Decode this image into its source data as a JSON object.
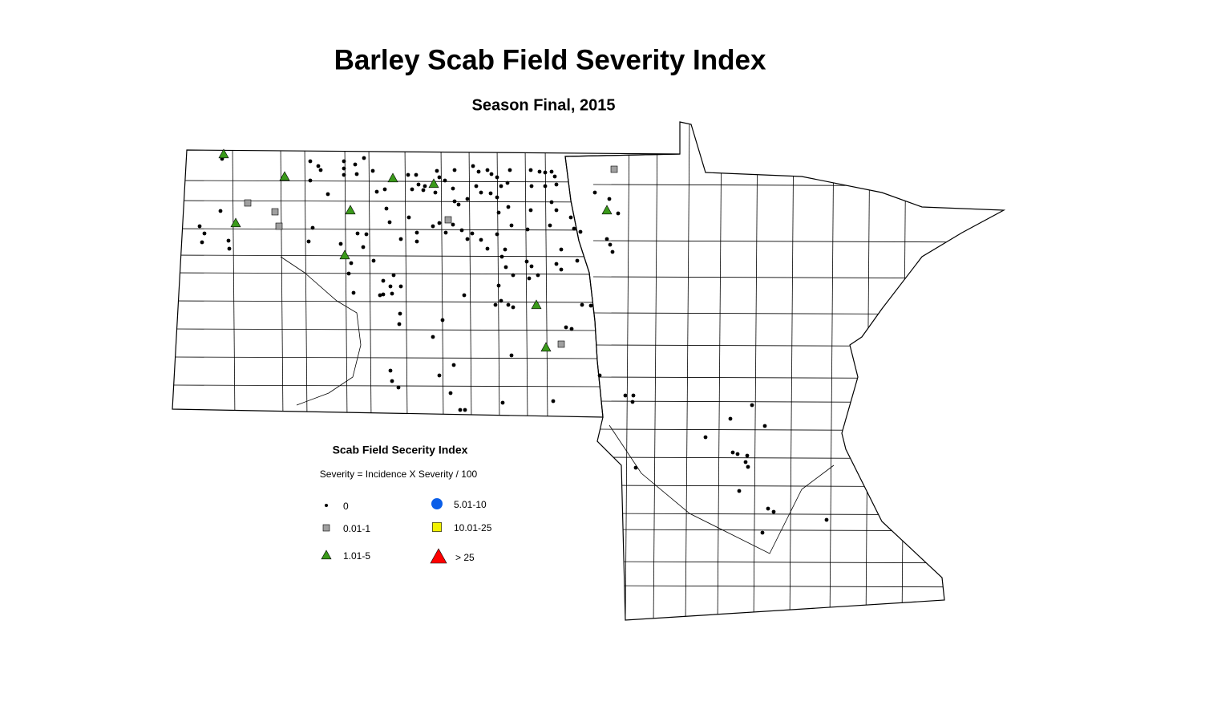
{
  "header": {
    "title": "Barley Scab Field Severity Index",
    "subtitle": "Season Final, 2015"
  },
  "legend": {
    "title": "Scab Field Secerity Index",
    "note": "Severity = Incidence X Severity / 100",
    "items": [
      {
        "label": "0",
        "shape": "dot",
        "color": "#000000"
      },
      {
        "label": "0.01-1",
        "shape": "square",
        "color": "#a0a0a0"
      },
      {
        "label": "1.01-5",
        "shape": "triangle",
        "color": "#3a9a1a"
      },
      {
        "label": "5.01-10",
        "shape": "circle",
        "color": "#0a5ee8"
      },
      {
        "label": "10.01-25",
        "shape": "square",
        "color": "#f2f200"
      },
      {
        "label": "> 25",
        "shape": "triangle",
        "color": "#ff0000"
      }
    ]
  }
}
